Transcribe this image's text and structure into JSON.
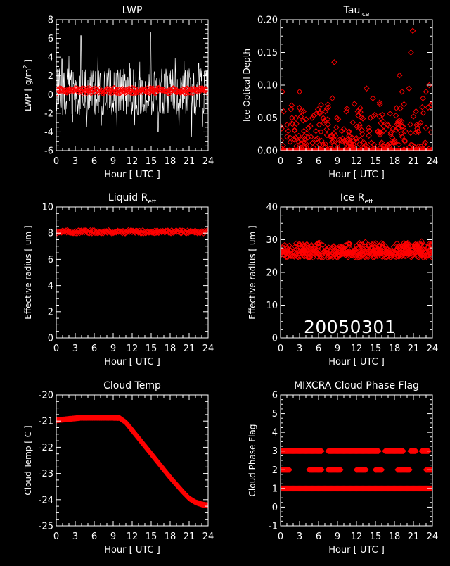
{
  "date_label": "20050301",
  "colors": {
    "background": "#000000",
    "axes": "#ffffff",
    "markers": "#ff0000",
    "trace": "#ffffff"
  },
  "chart_data": [
    {
      "id": "lwp",
      "type": "scatter",
      "title": "LWP",
      "title_sub": "",
      "ylabel": "LWP [ g/m",
      "ylabel_sup": "2",
      "ylabel_end": " ]",
      "xlabel": "Hour [ UTC ]",
      "xlim": [
        0,
        24
      ],
      "ylim": [
        -6,
        8
      ],
      "xticks": [
        0,
        3,
        6,
        9,
        12,
        15,
        18,
        21,
        24
      ],
      "yticks": [
        -6,
        -4,
        -2,
        0,
        2,
        4,
        6,
        8
      ],
      "ytick_labels": [
        "-6",
        "-4",
        "-2",
        "0",
        "2",
        "4",
        "6",
        "8"
      ],
      "series": [
        {
          "kind": "noise-trace",
          "center": 0.3,
          "amplitude": 1.8,
          "color": "#ffffff",
          "spikes": [
            [
              3.9,
              6.3
            ],
            [
              14.9,
              6.7
            ],
            [
              6.6,
              4.3
            ],
            [
              2.0,
              4.1
            ],
            [
              18.8,
              3.9
            ],
            [
              0.9,
              3.8
            ],
            [
              20.2,
              3.6
            ],
            [
              11.6,
              3.4
            ],
            [
              13.2,
              3.5
            ],
            [
              22.5,
              3.3
            ],
            [
              4.8,
              -3.5
            ],
            [
              7.1,
              -3.3
            ],
            [
              9.6,
              -3.6
            ],
            [
              12.4,
              -3.3
            ],
            [
              16.1,
              -4.0
            ],
            [
              19.4,
              -3.6
            ],
            [
              21.4,
              -4.5
            ],
            [
              23.1,
              -3.4
            ],
            [
              2.6,
              -3.0
            ]
          ]
        },
        {
          "kind": "diamond-band",
          "y": 0.4,
          "jitter": 0.3,
          "color": "#ff0000"
        }
      ]
    },
    {
      "id": "tau-ice",
      "type": "scatter",
      "title": "Tau",
      "title_sub": "ice",
      "ylabel": "Ice Optical Depth",
      "xlabel": "Hour [ UTC ]",
      "xlim": [
        0,
        24
      ],
      "ylim": [
        0,
        0.2
      ],
      "xticks": [
        0,
        3,
        6,
        9,
        12,
        15,
        18,
        21,
        24
      ],
      "yticks": [
        0,
        0.05,
        0.1,
        0.15,
        0.2
      ],
      "ytick_labels": [
        "0.00",
        "0.05",
        "0.10",
        "0.15",
        "0.20"
      ],
      "series": [
        {
          "kind": "diamond-band",
          "y": 0.0,
          "jitter": 0.0,
          "color": "#ff0000"
        },
        {
          "kind": "scatter-points",
          "color": "#ff0000",
          "points": [
            [
              0.3,
              0.09
            ],
            [
              0.5,
              0.06
            ],
            [
              1.2,
              0.03
            ],
            [
              1.8,
              0.05
            ],
            [
              2.4,
              0.02
            ],
            [
              3.0,
              0.09
            ],
            [
              3.3,
              0.06
            ],
            [
              3.7,
              0.03
            ],
            [
              4.3,
              0.02
            ],
            [
              5.0,
              0.05
            ],
            [
              5.6,
              0.03
            ],
            [
              6.4,
              0.07
            ],
            [
              7.1,
              0.06
            ],
            [
              7.5,
              0.04
            ],
            [
              8.2,
              0.08
            ],
            [
              8.5,
              0.135
            ],
            [
              8.9,
              0.05
            ],
            [
              9.7,
              0.03
            ],
            [
              10.4,
              0.06
            ],
            [
              11.3,
              0.02
            ],
            [
              12.2,
              0.06
            ],
            [
              12.6,
              0.065
            ],
            [
              13.6,
              0.095
            ],
            [
              14.2,
              0.05
            ],
            [
              14.6,
              0.08
            ],
            [
              15.4,
              0.03
            ],
            [
              16.1,
              0.055
            ],
            [
              16.9,
              0.04
            ],
            [
              17.4,
              0.025
            ],
            [
              18.3,
              0.065
            ],
            [
              18.8,
              0.115
            ],
            [
              19.2,
              0.09
            ],
            [
              19.7,
              0.03
            ],
            [
              20.3,
              0.095
            ],
            [
              20.6,
              0.15
            ],
            [
              20.9,
              0.183
            ],
            [
              21.4,
              0.06
            ],
            [
              21.9,
              0.04
            ],
            [
              22.5,
              0.08
            ],
            [
              23.0,
              0.09
            ],
            [
              23.5,
              0.1
            ],
            [
              23.8,
              0.07
            ]
          ]
        }
      ]
    },
    {
      "id": "liquid-reff",
      "type": "scatter",
      "title": "Liquid R",
      "title_sub": "eff",
      "ylabel": "Effective radius [ um ]",
      "xlabel": "Hour [ UTC ]",
      "xlim": [
        0,
        24
      ],
      "ylim": [
        0,
        10
      ],
      "xticks": [
        0,
        3,
        6,
        9,
        12,
        15,
        18,
        21,
        24
      ],
      "yticks": [
        0,
        2,
        4,
        6,
        8,
        10
      ],
      "ytick_labels": [
        "0",
        "2",
        "4",
        "6",
        "8",
        "10"
      ],
      "series": [
        {
          "kind": "diamond-band",
          "y": 8.1,
          "jitter": 0.12,
          "color": "#ff0000"
        }
      ]
    },
    {
      "id": "ice-reff",
      "type": "scatter",
      "title": "Ice R",
      "title_sub": "eff",
      "ylabel": "Effective radius [ um ]",
      "xlabel": "Hour [ UTC ]",
      "xlim": [
        0,
        24
      ],
      "ylim": [
        0,
        40
      ],
      "xticks": [
        0,
        3,
        6,
        9,
        12,
        15,
        18,
        21,
        24
      ],
      "yticks": [
        0,
        10,
        20,
        30,
        40
      ],
      "ytick_labels": [
        "0",
        "10",
        "20",
        "30",
        "40"
      ],
      "series": [
        {
          "kind": "diamond-band",
          "y": 25.5,
          "jitter": 1.0,
          "color": "#ff0000"
        },
        {
          "kind": "scatter-points",
          "color": "#ff0000",
          "points": [
            [
              0.4,
              27.5
            ],
            [
              0.9,
              28.0
            ],
            [
              1.6,
              26.8
            ],
            [
              2.3,
              27.9
            ],
            [
              2.9,
              28.6
            ],
            [
              3.5,
              27.0
            ],
            [
              4.2,
              26.5
            ],
            [
              4.8,
              27.4
            ],
            [
              5.5,
              28.1
            ],
            [
              6.2,
              29.0
            ],
            [
              6.7,
              28.4
            ],
            [
              7.3,
              27.2
            ],
            [
              7.8,
              26.6
            ],
            [
              8.4,
              27.8
            ],
            [
              9.1,
              26.4
            ],
            [
              9.8,
              27.5
            ],
            [
              10.5,
              28.3
            ],
            [
              11.1,
              27.1
            ],
            [
              11.7,
              26.9
            ],
            [
              12.3,
              27.6
            ],
            [
              12.9,
              28.5
            ],
            [
              13.4,
              29.3
            ],
            [
              13.9,
              28.0
            ],
            [
              14.5,
              27.3
            ],
            [
              15.1,
              26.8
            ],
            [
              15.6,
              27.9
            ],
            [
              16.2,
              28.7
            ],
            [
              16.8,
              27.4
            ],
            [
              17.3,
              26.7
            ],
            [
              17.9,
              27.8
            ],
            [
              18.4,
              28.9
            ],
            [
              19.0,
              27.6
            ],
            [
              19.5,
              29.0
            ],
            [
              20.1,
              28.2
            ],
            [
              20.6,
              27.0
            ],
            [
              21.2,
              28.4
            ],
            [
              21.7,
              27.2
            ],
            [
              22.3,
              29.5
            ],
            [
              22.8,
              28.1
            ],
            [
              23.3,
              27.4
            ],
            [
              23.8,
              28.8
            ]
          ]
        }
      ]
    },
    {
      "id": "cloud-temp",
      "type": "line",
      "title": "Cloud Temp",
      "title_sub": "",
      "ylabel": "Cloud Temp [ C ]",
      "xlabel": "Hour [ UTC ]",
      "xlim": [
        0,
        24
      ],
      "ylim": [
        -25,
        -20
      ],
      "xticks": [
        0,
        3,
        6,
        9,
        12,
        15,
        18,
        21,
        24
      ],
      "yticks": [
        -25,
        -24,
        -23,
        -22,
        -21,
        -20
      ],
      "ytick_labels": [
        "-25",
        "-24",
        "-23",
        "-22",
        "-21",
        "-20"
      ],
      "series": [
        {
          "kind": "diamond-curve",
          "color": "#ff0000",
          "curve": [
            [
              0,
              -20.97
            ],
            [
              2,
              -20.92
            ],
            [
              4,
              -20.87
            ],
            [
              6,
              -20.87
            ],
            [
              8,
              -20.87
            ],
            [
              10,
              -20.88
            ],
            [
              11,
              -21.05
            ],
            [
              12,
              -21.35
            ],
            [
              14,
              -21.95
            ],
            [
              16,
              -22.55
            ],
            [
              18,
              -23.15
            ],
            [
              20,
              -23.7
            ],
            [
              21,
              -23.95
            ],
            [
              22,
              -24.1
            ],
            [
              23,
              -24.18
            ],
            [
              24,
              -24.22
            ]
          ]
        }
      ]
    },
    {
      "id": "phase-flag",
      "type": "scatter",
      "title": "MIXCRA Cloud Phase Flag",
      "title_sub": "",
      "ylabel": "Cloud Phase Flag",
      "xlabel": "Hour [ UTC ]",
      "xlim": [
        0,
        24
      ],
      "ylim": [
        -1,
        6
      ],
      "xticks": [
        0,
        3,
        6,
        9,
        12,
        15,
        18,
        21,
        24
      ],
      "yticks": [
        -1,
        0,
        1,
        2,
        3,
        4,
        5,
        6
      ],
      "ytick_labels": [
        "-1",
        "0",
        "1",
        "2",
        "3",
        "4",
        "5",
        "6"
      ],
      "series": [
        {
          "kind": "diamond-level",
          "y": 1,
          "color": "#ff0000",
          "ranges": [
            [
              0,
              24
            ]
          ]
        },
        {
          "kind": "diamond-level",
          "y": 2,
          "color": "#ff0000",
          "ranges": [
            [
              0,
              1.5
            ],
            [
              4.5,
              6.5
            ],
            [
              7.5,
              9.5
            ],
            [
              12,
              13.5
            ],
            [
              15,
              16
            ],
            [
              18.5,
              20.5
            ],
            [
              23,
              24
            ]
          ]
        },
        {
          "kind": "diamond-level",
          "y": 3,
          "color": "#ff0000",
          "ranges": [
            [
              0,
              6.5
            ],
            [
              7.5,
              15.5
            ],
            [
              16.5,
              19.5
            ],
            [
              20.5,
              21.5
            ],
            [
              22.3,
              23.5
            ]
          ]
        }
      ]
    }
  ]
}
